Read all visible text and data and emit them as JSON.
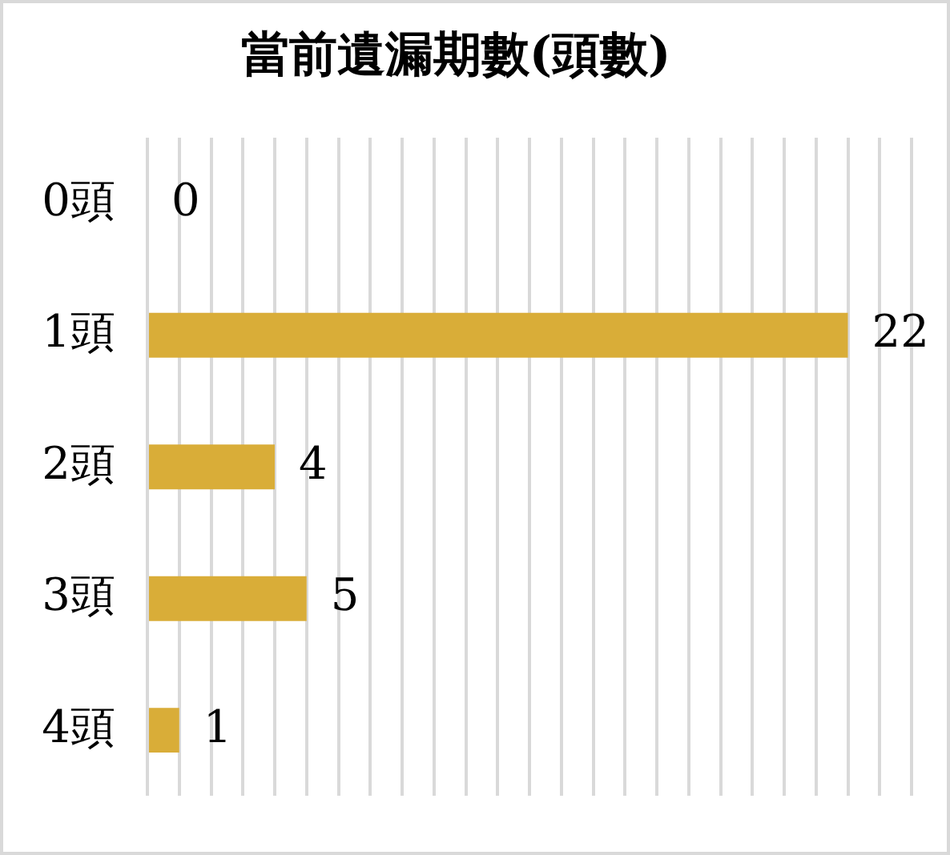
{
  "chart_data": {
    "type": "bar",
    "orientation": "horizontal",
    "title": "當前遺漏期數(頭數)",
    "categories": [
      "0頭",
      "1頭",
      "2頭",
      "3頭",
      "4頭"
    ],
    "values": [
      0,
      22,
      4,
      5,
      1
    ],
    "color": "#d9ad38",
    "xlim": [
      0,
      24
    ],
    "xticks": [
      {
        "value": 0,
        "label": null
      },
      {
        "value": 1,
        "label": null
      },
      {
        "value": 2,
        "label": null
      },
      {
        "value": 3,
        "label": null
      },
      {
        "value": 4,
        "label": null
      },
      {
        "value": 5,
        "label": null
      },
      {
        "value": 6,
        "label": null
      },
      {
        "value": 7,
        "label": null
      },
      {
        "value": 8,
        "label": null
      },
      {
        "value": 9,
        "label": null
      },
      {
        "value": 10,
        "label": null
      },
      {
        "value": 11,
        "label": null
      },
      {
        "value": 12,
        "label": null
      },
      {
        "value": 13,
        "label": null
      },
      {
        "value": 14,
        "label": null
      },
      {
        "value": 15,
        "label": null
      },
      {
        "value": 16,
        "label": null
      },
      {
        "value": 17,
        "label": null
      },
      {
        "value": 18,
        "label": null
      },
      {
        "value": 19,
        "label": null
      },
      {
        "value": 20,
        "label": null
      },
      {
        "value": 21,
        "label": null
      },
      {
        "value": 22,
        "label": null
      },
      {
        "value": 23,
        "label": null
      },
      {
        "value": 24,
        "label": null
      }
    ],
    "grid": "x",
    "tick_labels": "y",
    "data_labels": true
  }
}
